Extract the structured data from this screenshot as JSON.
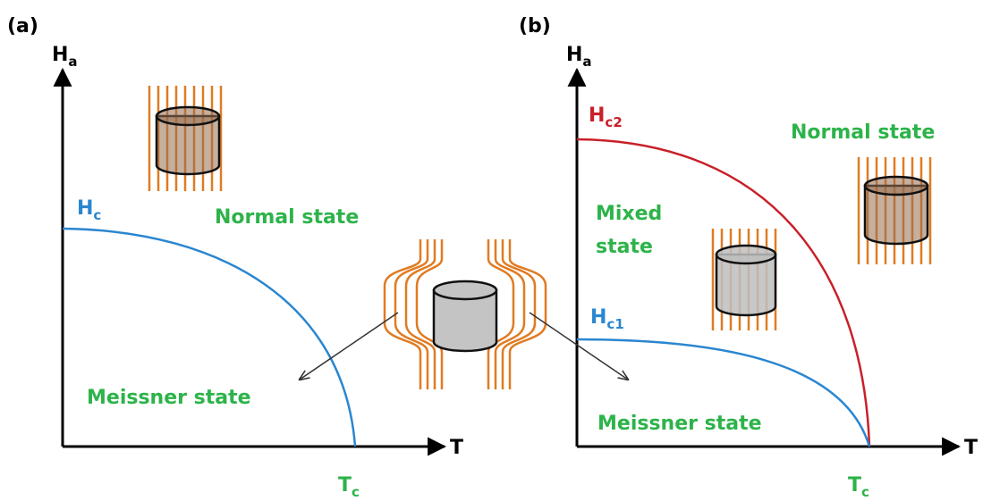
{
  "panels": [
    {
      "label": "(a)",
      "y_axis": {
        "symbol": "H",
        "subscript": "a"
      },
      "x_axis": "T",
      "curves": [
        {
          "symbol": "H",
          "subscript": "c"
        }
      ],
      "tc": {
        "symbol": "T",
        "subscript": "c"
      },
      "regions": {
        "normal": "Normal state",
        "meissner": "Meissner state"
      }
    },
    {
      "label": "(b)",
      "y_axis": {
        "symbol": "H",
        "subscript": "a"
      },
      "x_axis": "T",
      "curves": [
        {
          "symbol": "H",
          "subscript": "c2"
        },
        {
          "symbol": "H",
          "subscript": "c1"
        }
      ],
      "tc": {
        "symbol": "T",
        "subscript": "c"
      },
      "regions": {
        "normal": "Normal state",
        "mixed": [
          "Mixed",
          "state"
        ],
        "meissner": "Meissner state"
      }
    }
  ]
}
